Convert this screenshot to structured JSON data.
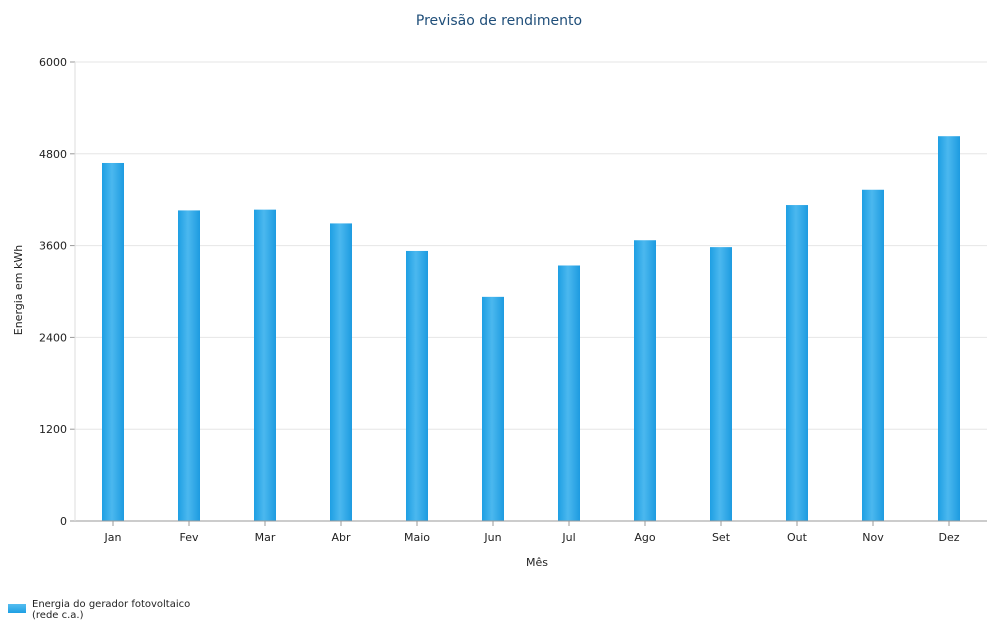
{
  "chart_data": {
    "type": "bar",
    "title": "Previsão de rendimento",
    "xlabel": "Mês",
    "ylabel": "Energia em kWh",
    "categories": [
      "Jan",
      "Fev",
      "Mar",
      "Abr",
      "Maio",
      "Jun",
      "Jul",
      "Ago",
      "Set",
      "Out",
      "Nov",
      "Dez"
    ],
    "series": [
      {
        "name": "Energia do gerador fotovoltaico (rede c.a.)",
        "values": [
          4680,
          4060,
          4070,
          3890,
          3530,
          2930,
          3340,
          3670,
          3580,
          4130,
          4330,
          5030
        ],
        "color": "#2aa7e8"
      }
    ],
    "ylim": [
      0,
      6000
    ],
    "yticks": [
      "0",
      "1200",
      "2400",
      "3600",
      "4800",
      "6000"
    ],
    "grid": true,
    "legend_position": "bottom-left"
  },
  "colors": {
    "bar": "#2aa7e8",
    "title": "#1f4e79",
    "grid": "#e6e6e6",
    "axis": "#999999"
  }
}
